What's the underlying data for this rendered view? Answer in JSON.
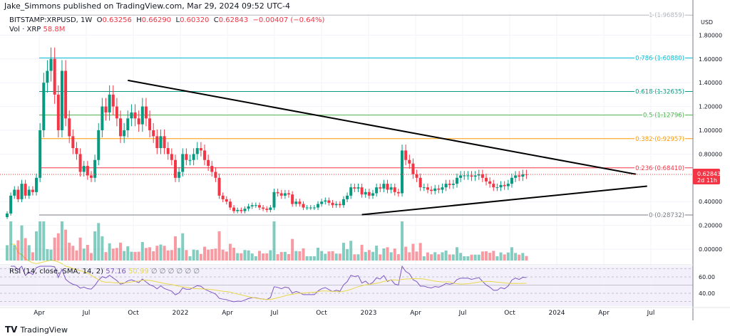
{
  "header": {
    "published": "Jake_Simmons published on TradingView.com, Mar 29, 2024 09:52 UTC-4"
  },
  "legend": {
    "symbol": "BITSTAMP:XRPUSD, 1W",
    "o_label": "O",
    "open": "0.63256",
    "h_label": "H",
    "high": "0.66290",
    "l_label": "L",
    "low": "0.60320",
    "c_label": "C",
    "close": "0.62843",
    "change": "−0.00407 (−0.64%)",
    "vol_label": "Vol · XRP",
    "vol_value": "58.8M"
  },
  "rsi": {
    "label": "RSI (14, close, SMA, 14, 2)",
    "value": "57.16",
    "sma": "50.99",
    "extra": "∅ ∅ ∅ ∅ ∅ ∅",
    "ticks": [
      "60.00",
      "40.00"
    ]
  },
  "price_badge": {
    "price": "0.62843",
    "countdown": "2d 11h",
    "color": "#f23645"
  },
  "footer": {
    "brand": "TradingView"
  },
  "chart_data": {
    "type": "candlestick",
    "currency": "USD",
    "y_ticks": [
      "1.80000",
      "1.60000",
      "1.40000",
      "1.20000",
      "1.00000",
      "0.80000",
      "0.40000",
      "0.20000",
      "0.00000"
    ],
    "y_tick_values": [
      1.8,
      1.6,
      1.4,
      1.2,
      1.0,
      0.8,
      0.4,
      0.2,
      0.0
    ],
    "x_ticks": [
      "Apr",
      "Jul",
      "Oct",
      "2022",
      "Apr",
      "Jul",
      "Oct",
      "2023",
      "Apr",
      "Jul",
      "Oct",
      "2024",
      "Apr",
      "Jul"
    ],
    "fib_levels": [
      {
        "label": "1 (1.96859)",
        "value": 1.96859,
        "color": "#b2b5be"
      },
      {
        "label": "0.786 (1.60880)",
        "value": 1.6088,
        "color": "#00bcd4"
      },
      {
        "label": "0.618 (1.32635)",
        "value": 1.32635,
        "color": "#089981"
      },
      {
        "label": "0.5 (1.12796)",
        "value": 1.12796,
        "color": "#4caf50"
      },
      {
        "label": "0.382 (0.92957)",
        "value": 0.92957,
        "color": "#ff9800"
      },
      {
        "label": "0.236 (0.68410)",
        "value": 0.6841,
        "color": "#f23645"
      },
      {
        "label": "0 (0.28732)",
        "value": 0.28732,
        "color": "#787b86"
      }
    ],
    "trendlines": [
      {
        "from": [
          33,
          1.42
        ],
        "to": [
          172,
          0.63
        ]
      },
      {
        "from": [
          97,
          0.29
        ],
        "to": [
          175,
          0.53
        ]
      }
    ],
    "weekly_closes": [
      0.3,
      0.45,
      0.5,
      0.42,
      0.55,
      0.45,
      0.5,
      0.48,
      0.6,
      1.0,
      1.4,
      1.5,
      1.6,
      1.3,
      1.0,
      1.5,
      1.1,
      0.95,
      0.85,
      0.8,
      0.65,
      0.7,
      0.62,
      0.6,
      0.75,
      1.0,
      1.2,
      1.15,
      1.3,
      1.2,
      1.1,
      0.95,
      1.0,
      1.1,
      1.15,
      1.1,
      1.05,
      1.2,
      1.1,
      1.0,
      0.95,
      0.85,
      0.95,
      0.85,
      0.8,
      0.75,
      0.6,
      0.65,
      0.8,
      0.75,
      0.75,
      0.8,
      0.85,
      0.83,
      0.75,
      0.7,
      0.65,
      0.6,
      0.45,
      0.42,
      0.4,
      0.35,
      0.32,
      0.33,
      0.32,
      0.34,
      0.36,
      0.37,
      0.37,
      0.35,
      0.34,
      0.33,
      0.35,
      0.48,
      0.47,
      0.45,
      0.47,
      0.46,
      0.38,
      0.4,
      0.38,
      0.35,
      0.35,
      0.35,
      0.35,
      0.38,
      0.4,
      0.41,
      0.39,
      0.37,
      0.38,
      0.37,
      0.42,
      0.45,
      0.52,
      0.51,
      0.52,
      0.46,
      0.48,
      0.45,
      0.47,
      0.52,
      0.51,
      0.55,
      0.5,
      0.52,
      0.48,
      0.47,
      0.83,
      0.75,
      0.72,
      0.63,
      0.6,
      0.52,
      0.52,
      0.5,
      0.49,
      0.51,
      0.5,
      0.52,
      0.55,
      0.54,
      0.55,
      0.6,
      0.62,
      0.62,
      0.62,
      0.61,
      0.62,
      0.63,
      0.6,
      0.57,
      0.55,
      0.52,
      0.52,
      0.54,
      0.53,
      0.55,
      0.6,
      0.62,
      0.61,
      0.63,
      0.62843
    ],
    "up_color": "#089981",
    "down_color": "#f23645"
  }
}
